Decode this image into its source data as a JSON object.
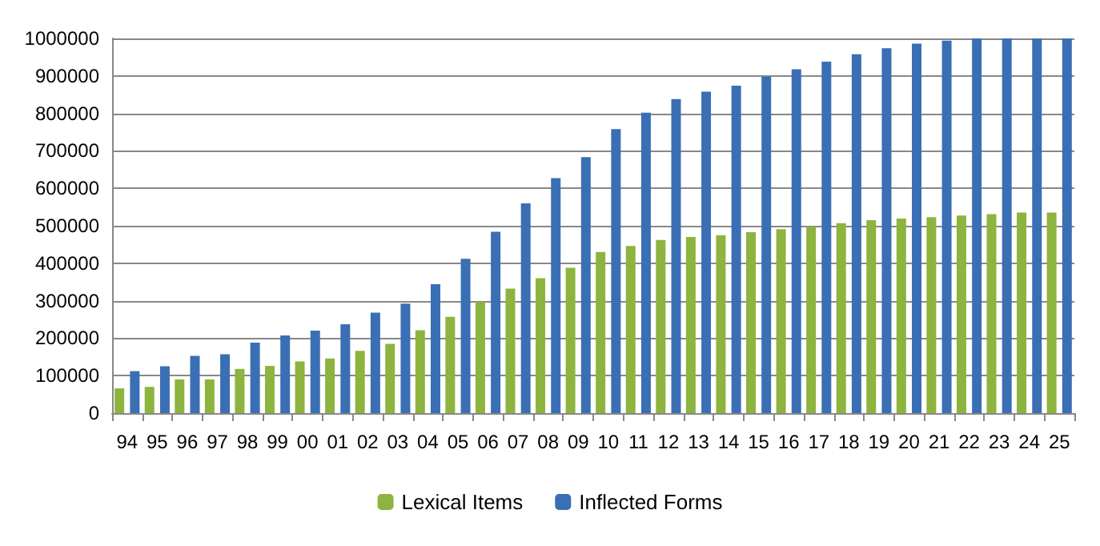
{
  "chart_data": {
    "type": "bar",
    "categories": [
      "94",
      "95",
      "96",
      "97",
      "98",
      "99",
      "00",
      "01",
      "02",
      "03",
      "04",
      "05",
      "06",
      "07",
      "08",
      "09",
      "10",
      "11",
      "12",
      "13",
      "14",
      "15",
      "16",
      "17",
      "18",
      "19",
      "20",
      "21",
      "22",
      "23",
      "24",
      "25"
    ],
    "series": [
      {
        "name": "Lexical Items",
        "color": "#8db43e",
        "values": [
          66000,
          70000,
          90000,
          90000,
          118000,
          126000,
          138000,
          146000,
          166000,
          185000,
          221000,
          257000,
          297000,
          332000,
          360000,
          388000,
          430000,
          446000,
          462000,
          470000,
          475000,
          483000,
          491000,
          498000,
          507000,
          515000,
          519000,
          523000,
          527000,
          531000,
          535000,
          535000
        ]
      },
      {
        "name": "Inflected Forms",
        "color": "#3a6fb5",
        "values": [
          112000,
          125000,
          153000,
          157000,
          188000,
          207000,
          220000,
          237000,
          268000,
          292000,
          344000,
          412000,
          484000,
          560000,
          627000,
          683000,
          758000,
          802000,
          838000,
          858000,
          874000,
          898000,
          918000,
          938000,
          958000,
          974000,
          986000,
          994000,
          1000000,
          1000000,
          1000000,
          1000000
        ]
      }
    ],
    "ylim": [
      0,
      1000000
    ],
    "yticks": [
      0,
      100000,
      200000,
      300000,
      400000,
      500000,
      600000,
      700000,
      800000,
      900000,
      1000000
    ],
    "grid": "y",
    "legend": "bottom"
  }
}
